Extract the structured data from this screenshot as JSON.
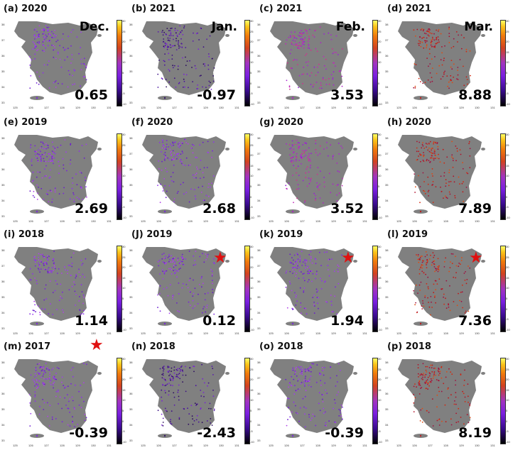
{
  "x_ticks": [
    "125",
    "126",
    "127",
    "128",
    "129",
    "130",
    "131"
  ],
  "y_ticks": [
    "38",
    "37",
    "36",
    "35",
    "34",
    "33"
  ],
  "colorbar_ticks": [
    "30",
    "25",
    "20",
    "15",
    "10",
    "5",
    "0",
    "-5",
    "-10"
  ],
  "colors": {
    "land": "#808080",
    "sea": "#ffffff",
    "star": "#e01010"
  },
  "panels": [
    {
      "label": "(a) 2020",
      "month": "Dec.",
      "value": "0.65",
      "tone": "purple",
      "star": false
    },
    {
      "label": "(b) 2021",
      "month": "Jan.",
      "value": "-0.97",
      "tone": "dark",
      "star": false
    },
    {
      "label": "(c) 2021",
      "month": "Feb.",
      "value": "3.53",
      "tone": "magenta",
      "star": false
    },
    {
      "label": "(d) 2021",
      "month": "Mar.",
      "value": "8.88",
      "tone": "red",
      "star": false
    },
    {
      "label": "(e) 2019",
      "month": "",
      "value": "2.69",
      "tone": "purple",
      "star": false
    },
    {
      "label": "(f) 2020",
      "month": "",
      "value": "2.68",
      "tone": "purple",
      "star": false
    },
    {
      "label": "(g) 2020",
      "month": "",
      "value": "3.52",
      "tone": "magenta",
      "star": false
    },
    {
      "label": "(h) 2020",
      "month": "",
      "value": "7.89",
      "tone": "red",
      "star": false
    },
    {
      "label": "(i) 2018",
      "month": "",
      "value": "1.14",
      "tone": "purple",
      "star": false
    },
    {
      "label": "(J) 2019",
      "month": "",
      "value": "0.12",
      "tone": "purple",
      "star": true
    },
    {
      "label": "(k) 2019",
      "month": "",
      "value": "1.94",
      "tone": "purple",
      "star": true
    },
    {
      "label": "(l) 2019",
      "month": "",
      "value": "7.36",
      "tone": "red",
      "star": true
    },
    {
      "label": "(m) 2017",
      "month": "",
      "value": "-0.39",
      "tone": "purple",
      "star": true
    },
    {
      "label": "(n) 2018",
      "month": "",
      "value": "-2.43",
      "tone": "dark",
      "star": false
    },
    {
      "label": "(o) 2018",
      "month": "",
      "value": "-0.39",
      "tone": "purple",
      "star": false
    },
    {
      "label": "(p) 2018",
      "month": "",
      "value": "8.19",
      "tone": "red",
      "star": false
    }
  ]
}
